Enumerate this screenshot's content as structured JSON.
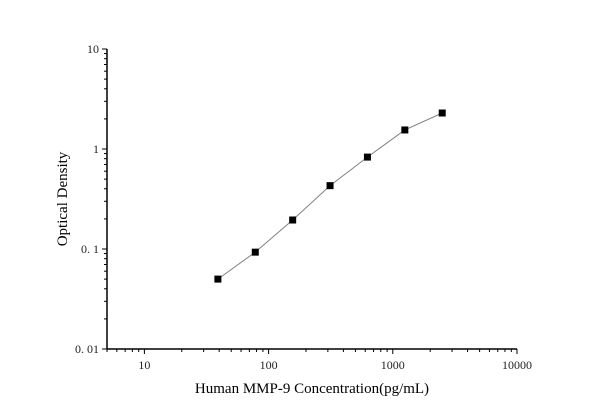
{
  "chart_data": {
    "type": "line",
    "title": "",
    "xlabel": "Human MMP-9 Concentration(pg/mL)",
    "ylabel": "Optical Density",
    "xscale": "log",
    "yscale": "log",
    "xlim": [
      5,
      10000
    ],
    "ylim": [
      0.01,
      10
    ],
    "grid": false,
    "marker": "square",
    "x_ticks": [
      {
        "value": 10,
        "label": "10"
      },
      {
        "value": 100,
        "label": "100"
      },
      {
        "value": 1000,
        "label": "1000"
      },
      {
        "value": 10000,
        "label": "10000"
      }
    ],
    "y_ticks": [
      {
        "value": 0.01,
        "label": "0. 01"
      },
      {
        "value": 0.1,
        "label": "0. 1"
      },
      {
        "value": 1,
        "label": "1"
      },
      {
        "value": 10,
        "label": "10"
      }
    ],
    "series": [
      {
        "x": [
          39.06,
          78.13,
          156.25,
          312.5,
          625,
          1250,
          2500
        ],
        "y": [
          0.05,
          0.093,
          0.195,
          0.43,
          0.83,
          1.55,
          2.29
        ]
      }
    ],
    "colors": {
      "axis": "#000000",
      "line": "#808080",
      "marker": "#000000"
    }
  }
}
